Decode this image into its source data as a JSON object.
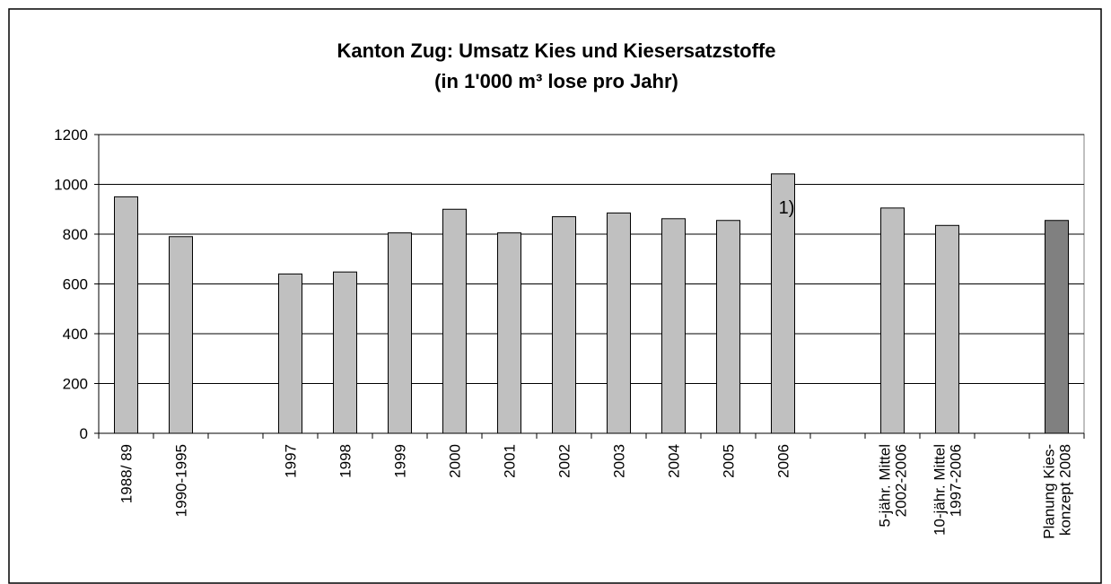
{
  "chart_data": {
    "type": "bar",
    "title": [
      "Kanton Zug:  Umsatz Kies und Kiesersatzstoffe",
      "(in 1'000 m³ lose pro Jahr)"
    ],
    "categories": [
      "1988/ 89",
      "1990-1995",
      null,
      "1997",
      "1998",
      "1999",
      "2000",
      "2001",
      "2002",
      "2003",
      "2004",
      "2005",
      "2006",
      null,
      "5-jähr. Mittel\n2002-2006",
      "10-jähr. Mittel\n1997-2006",
      null,
      "Planung Kies-\nkonzept 2008"
    ],
    "values": [
      950,
      790,
      null,
      640,
      648,
      805,
      900,
      805,
      870,
      885,
      862,
      855,
      1042,
      null,
      905,
      835,
      null,
      855
    ],
    "colors": [
      "#c0c0c0",
      "#c0c0c0",
      null,
      "#c0c0c0",
      "#c0c0c0",
      "#c0c0c0",
      "#c0c0c0",
      "#c0c0c0",
      "#c0c0c0",
      "#c0c0c0",
      "#c0c0c0",
      "#c0c0c0",
      "#c0c0c0",
      null,
      "#c0c0c0",
      "#c0c0c0",
      null,
      "#808080"
    ],
    "annotation": "1)",
    "ylim": [
      0,
      1200
    ],
    "yticks": [
      0,
      200,
      400,
      600,
      800,
      1000,
      1200
    ],
    "grid": true
  }
}
